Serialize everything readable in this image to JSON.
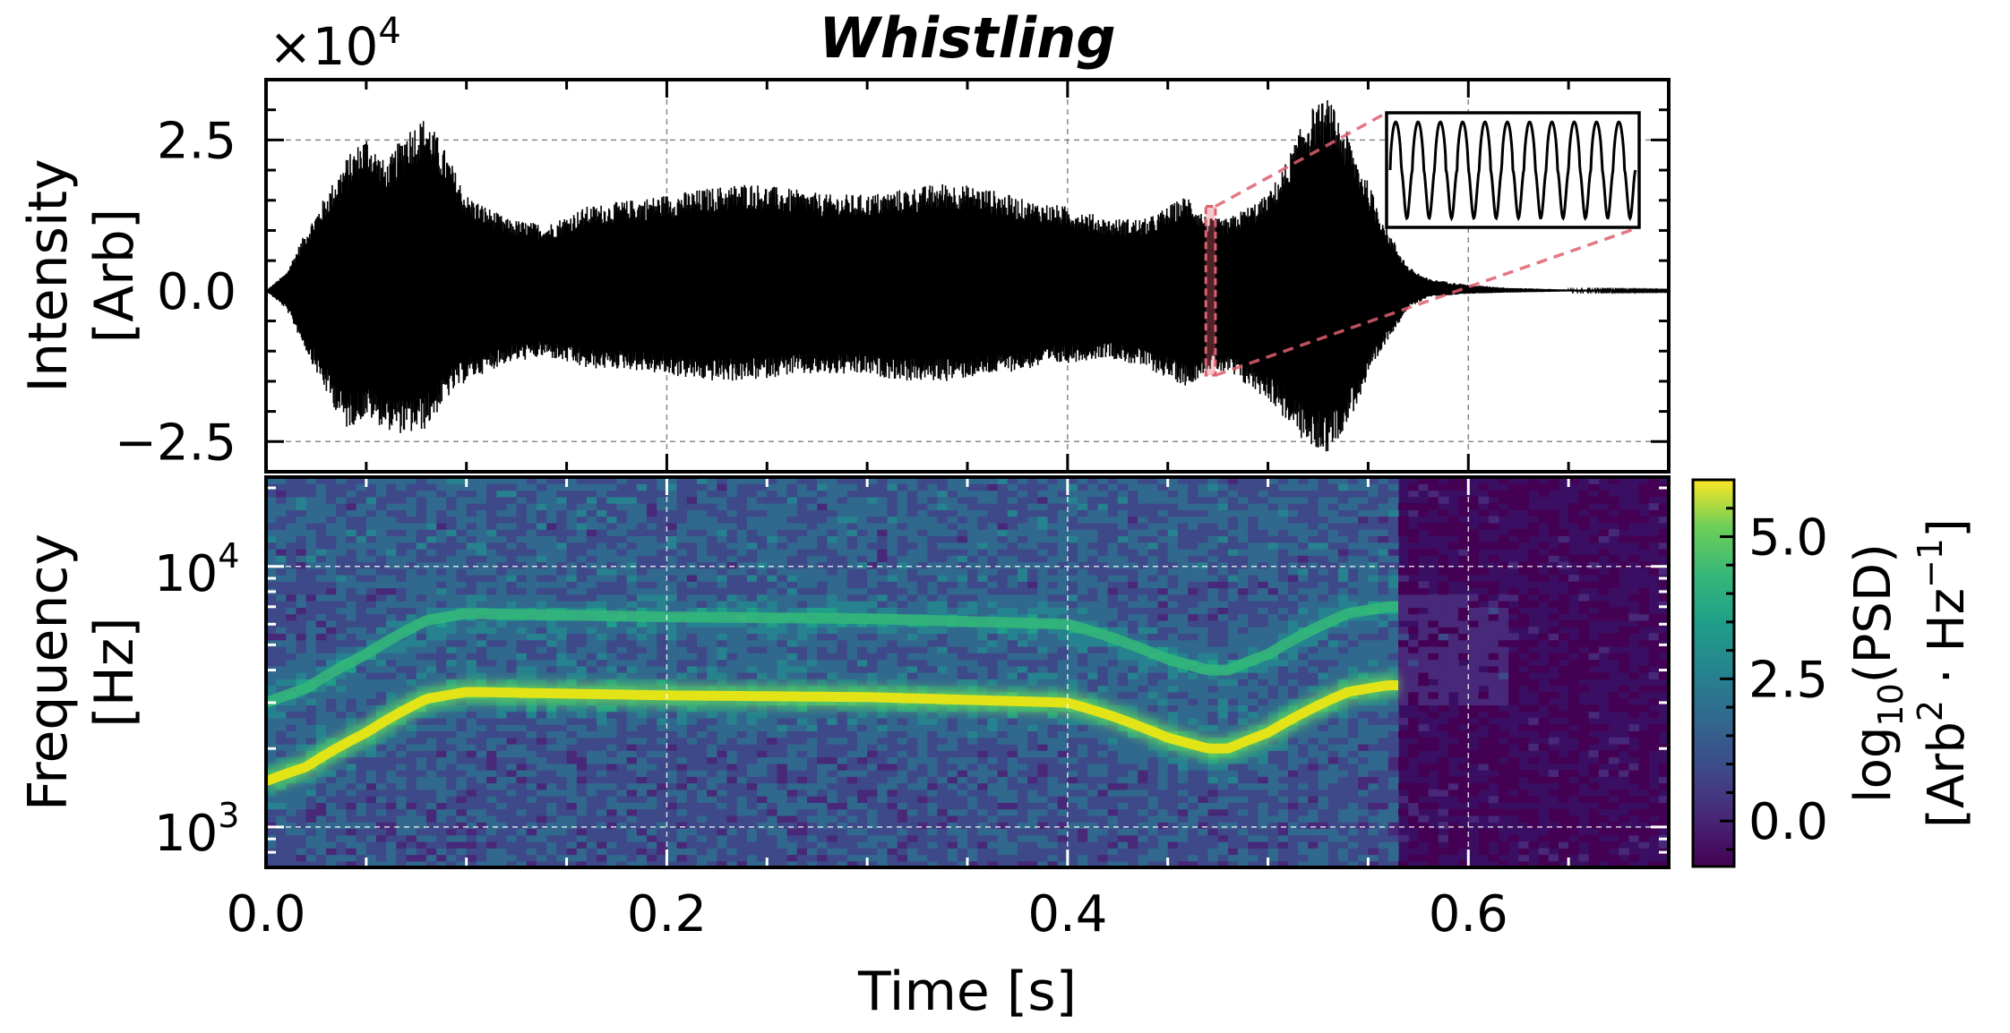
{
  "title": "Whistling",
  "chart_data": [
    {
      "type": "line",
      "panel": "waveform",
      "title": "Whistling",
      "offset_label": "×10",
      "offset_exponent": "4",
      "ylabel_line1": "Intensity",
      "ylabel_line2": "[Arb]",
      "xlim": [
        0.0,
        0.7
      ],
      "ylim": [
        -3.0,
        3.5
      ],
      "scale_factor": 10000,
      "yticks": [
        2.5,
        0.0,
        -2.5
      ],
      "ytick_labels": [
        "2.5",
        "0.0",
        "−2.5"
      ],
      "grid": true,
      "line_color": "#000000",
      "envelope": {
        "name": "",
        "x": [
          0.0,
          0.01,
          0.02,
          0.03,
          0.04,
          0.05,
          0.06,
          0.07,
          0.08,
          0.09,
          0.1,
          0.12,
          0.14,
          0.16,
          0.18,
          0.2,
          0.22,
          0.24,
          0.26,
          0.28,
          0.3,
          0.32,
          0.34,
          0.36,
          0.38,
          0.4,
          0.42,
          0.44,
          0.46,
          0.47,
          0.48,
          0.5,
          0.51,
          0.52,
          0.53,
          0.54,
          0.55,
          0.56,
          0.57,
          0.58,
          0.6,
          0.62,
          0.65,
          0.7
        ],
        "upper": [
          0.0,
          0.3,
          1.0,
          1.6,
          2.2,
          2.6,
          2.1,
          2.7,
          2.9,
          2.3,
          1.6,
          1.2,
          1.1,
          1.4,
          1.5,
          1.6,
          1.7,
          1.8,
          1.7,
          1.6,
          1.6,
          1.7,
          1.8,
          1.7,
          1.5,
          1.4,
          1.2,
          1.2,
          1.6,
          1.2,
          1.2,
          1.6,
          2.2,
          3.0,
          3.2,
          2.6,
          1.8,
          1.0,
          0.4,
          0.2,
          0.1,
          0.05,
          0.02,
          0.01
        ],
        "lower": [
          0.0,
          -0.3,
          -1.0,
          -1.7,
          -2.3,
          -2.1,
          -2.3,
          -2.4,
          -2.3,
          -1.8,
          -1.5,
          -1.2,
          -1.1,
          -1.3,
          -1.3,
          -1.4,
          -1.5,
          -1.5,
          -1.4,
          -1.4,
          -1.4,
          -1.5,
          -1.5,
          -1.4,
          -1.3,
          -1.2,
          -1.1,
          -1.3,
          -1.6,
          -1.3,
          -1.4,
          -1.8,
          -2.2,
          -2.6,
          -2.7,
          -2.2,
          -1.5,
          -0.8,
          -0.3,
          -0.1,
          -0.05,
          -0.03,
          -0.01,
          -0.01
        ]
      },
      "zoom_region": {
        "x": [
          0.469,
          0.472
        ],
        "y": [
          -1.4,
          1.4
        ],
        "color": "#e06070"
      },
      "inset": {
        "type": "line",
        "cycles": 11
      }
    },
    {
      "type": "heatmap",
      "panel": "spectrogram",
      "xlabel": "Time [s]",
      "ylabel_line1": "Frequency",
      "ylabel_line2": "[Hz]",
      "xlim": [
        0.0,
        0.7
      ],
      "xticks": [
        0.0,
        0.2,
        0.4,
        0.6
      ],
      "xtick_labels": [
        "0.0",
        "0.2",
        "0.4",
        "0.6"
      ],
      "yscale": "log",
      "ylim": [
        700,
        22000
      ],
      "yticks": [
        1000,
        10000
      ],
      "ytick_bases": [
        "10",
        "10"
      ],
      "ytick_exponents": [
        "3",
        "4"
      ],
      "colormap": "viridis",
      "clim": [
        -0.8,
        6.0
      ],
      "colorbar_ticks": [
        0.0,
        2.5,
        5.0
      ],
      "colorbar_tick_labels": [
        "0.0",
        "2.5",
        "5.0"
      ],
      "colorbar_label_line1_pre": "log",
      "colorbar_label_line1_sub": "10",
      "colorbar_label_line1_post": "(PSD)",
      "colorbar_label_line2_pre": "[Arb",
      "colorbar_label_line2_sup1": "2",
      "colorbar_label_line2_mid": " · Hz",
      "colorbar_label_line2_sup2": "−1",
      "colorbar_label_line2_post": "]",
      "fundamental": {
        "name": "",
        "t": [
          0.0,
          0.02,
          0.05,
          0.08,
          0.1,
          0.2,
          0.3,
          0.4,
          0.42,
          0.45,
          0.47,
          0.48,
          0.5,
          0.52,
          0.54,
          0.56
        ],
        "f": [
          1500,
          1700,
          2300,
          3100,
          3300,
          3200,
          3150,
          3000,
          2700,
          2200,
          2000,
          2000,
          2300,
          2800,
          3300,
          3500
        ]
      },
      "harmonic": {
        "name": "",
        "t": [
          0.0,
          0.02,
          0.05,
          0.08,
          0.1,
          0.2,
          0.3,
          0.4,
          0.42,
          0.45,
          0.47,
          0.48,
          0.5,
          0.52,
          0.54,
          0.56
        ],
        "f": [
          3000,
          3400,
          4600,
          6200,
          6600,
          6400,
          6300,
          6000,
          5400,
          4400,
          4000,
          4000,
          4600,
          5600,
          6600,
          7000
        ]
      },
      "signal_end_t": 0.565
    }
  ]
}
